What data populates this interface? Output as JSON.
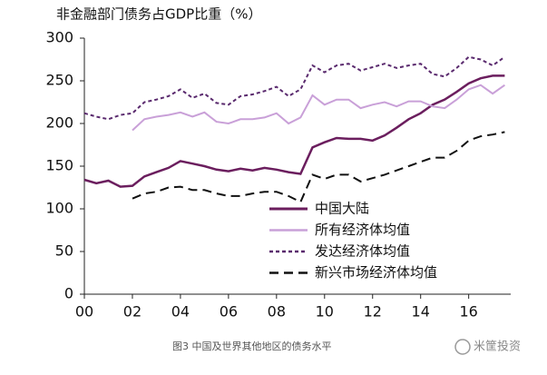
{
  "chart_data": {
    "type": "line",
    "title": "非金融部门债务占GDP比重（%）",
    "caption": "图3 中国及世界其他地区的债务水平",
    "watermark": "米筐投资",
    "x": [
      2000,
      2000.5,
      2001,
      2001.5,
      2002,
      2002.5,
      2003,
      2003.5,
      2004,
      2004.5,
      2005,
      2005.5,
      2006,
      2006.5,
      2007,
      2007.5,
      2008,
      2008.5,
      2009,
      2009.5,
      2010,
      2010.5,
      2011,
      2011.5,
      2012,
      2012.5,
      2013,
      2013.5,
      2014,
      2014.5,
      2015,
      2015.5,
      2016,
      2016.5,
      2017,
      2017.5
    ],
    "series": [
      {
        "name": "中国大陆",
        "color": "#6b1e5e",
        "dash": "solid",
        "width": 2.5,
        "values": [
          134,
          130,
          133,
          126,
          127,
          138,
          143,
          148,
          156,
          153,
          150,
          146,
          144,
          147,
          145,
          148,
          146,
          143,
          141,
          172,
          178,
          183,
          182,
          182,
          180,
          186,
          195,
          205,
          212,
          222,
          228,
          237,
          247,
          253,
          256,
          256
        ]
      },
      {
        "name": "所有经济体均值",
        "color": "#c9a0d8",
        "dash": "solid",
        "width": 2,
        "values": [
          null,
          null,
          null,
          null,
          192,
          205,
          208,
          210,
          213,
          208,
          213,
          202,
          200,
          205,
          205,
          207,
          212,
          200,
          207,
          233,
          222,
          228,
          228,
          218,
          222,
          225,
          220,
          226,
          226,
          220,
          218,
          228,
          240,
          245,
          235,
          245
        ]
      },
      {
        "name": "发达经济体均值",
        "color": "#5a2a6e",
        "dash": "short",
        "width": 2,
        "values": [
          212,
          208,
          205,
          210,
          212,
          225,
          228,
          232,
          240,
          230,
          235,
          224,
          222,
          232,
          234,
          238,
          243,
          232,
          240,
          268,
          260,
          268,
          270,
          262,
          266,
          270,
          265,
          268,
          270,
          258,
          255,
          265,
          278,
          275,
          268,
          278
        ]
      },
      {
        "name": "新兴市场经济体均值",
        "color": "#111111",
        "dash": "long",
        "width": 2,
        "values": [
          null,
          null,
          null,
          null,
          112,
          118,
          120,
          125,
          126,
          122,
          122,
          118,
          115,
          115,
          118,
          120,
          120,
          115,
          108,
          140,
          135,
          140,
          140,
          132,
          136,
          140,
          145,
          150,
          155,
          160,
          160,
          168,
          180,
          185,
          187,
          190
        ]
      }
    ],
    "xlim": [
      2000,
      2017.75
    ],
    "xticks": [
      {
        "value": 2000,
        "label": "00"
      },
      {
        "value": 2002,
        "label": "02"
      },
      {
        "value": 2004,
        "label": "04"
      },
      {
        "value": 2006,
        "label": "06"
      },
      {
        "value": 2008,
        "label": "08"
      },
      {
        "value": 2010,
        "label": "10"
      },
      {
        "value": 2012,
        "label": "12"
      },
      {
        "value": 2014,
        "label": "14"
      },
      {
        "value": 2016,
        "label": "16"
      }
    ],
    "ylim": [
      0,
      300
    ],
    "yticks": [
      0,
      50,
      100,
      150,
      200,
      250,
      300
    ],
    "grid": false,
    "legend": "lower center"
  }
}
